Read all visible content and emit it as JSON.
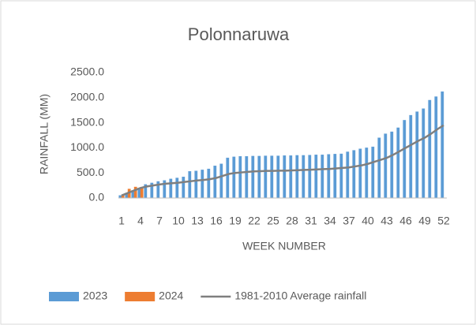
{
  "chart_data": {
    "type": "bar",
    "title": "Polonnaruwa",
    "x_label": "WEEK NUMBER",
    "y_label": "RAINFALL (MM)",
    "categories": [
      1,
      null,
      null,
      4,
      null,
      null,
      7,
      null,
      null,
      10,
      null,
      null,
      13,
      null,
      null,
      16,
      null,
      null,
      19,
      null,
      null,
      22,
      null,
      null,
      25,
      null,
      null,
      28,
      null,
      null,
      31,
      null,
      null,
      34,
      null,
      null,
      37,
      null,
      null,
      40,
      null,
      null,
      43,
      null,
      null,
      46,
      null,
      null,
      49,
      null,
      null,
      52
    ],
    "series": [
      {
        "name": "2023",
        "type": "bar",
        "color": "#5b9bd5",
        "values": [
          50,
          100,
          150,
          200,
          270,
          300,
          330,
          350,
          380,
          400,
          420,
          530,
          540,
          560,
          580,
          640,
          680,
          800,
          820,
          830,
          830,
          835,
          835,
          840,
          840,
          840,
          845,
          845,
          850,
          850,
          855,
          860,
          860,
          870,
          875,
          880,
          920,
          950,
          980,
          1000,
          1020,
          1200,
          1280,
          1320,
          1400,
          1550,
          1650,
          1720,
          1780,
          1950,
          2020,
          2120
        ]
      },
      {
        "name": "2024",
        "type": "bar",
        "color": "#ed7d31",
        "values": [
          60,
          180,
          220,
          200,
          null,
          null,
          null,
          null,
          null,
          null,
          null,
          null,
          null,
          null,
          null,
          null,
          null,
          null,
          null,
          null,
          null,
          null,
          null,
          null,
          null,
          null,
          null,
          null,
          null,
          null,
          null,
          null,
          null,
          null,
          null,
          null,
          null,
          null,
          null,
          null,
          null,
          null,
          null,
          null,
          null,
          null,
          null,
          null,
          null,
          null,
          null,
          null
        ]
      },
      {
        "name": "1981-2010 Average rainfall",
        "type": "line",
        "color": "#7f7f7f",
        "values": [
          50,
          100,
          150,
          200,
          230,
          250,
          270,
          285,
          295,
          305,
          320,
          335,
          350,
          360,
          375,
          400,
          440,
          480,
          500,
          510,
          520,
          530,
          535,
          540,
          540,
          545,
          545,
          550,
          555,
          560,
          565,
          570,
          575,
          580,
          590,
          600,
          610,
          630,
          650,
          680,
          720,
          760,
          800,
          860,
          930,
          1000,
          1070,
          1140,
          1200,
          1280,
          1370,
          1450
        ]
      }
    ],
    "ylim": [
      0,
      2500
    ],
    "yticks": [
      {
        "value": 0,
        "label": "0.0"
      },
      {
        "value": 500,
        "label": "500.0"
      },
      {
        "value": 1000,
        "label": "1000.0"
      },
      {
        "value": 1500,
        "label": "1500.0"
      },
      {
        "value": 2000,
        "label": "2000.0"
      },
      {
        "value": 2500,
        "label": "2500.0"
      }
    ]
  }
}
